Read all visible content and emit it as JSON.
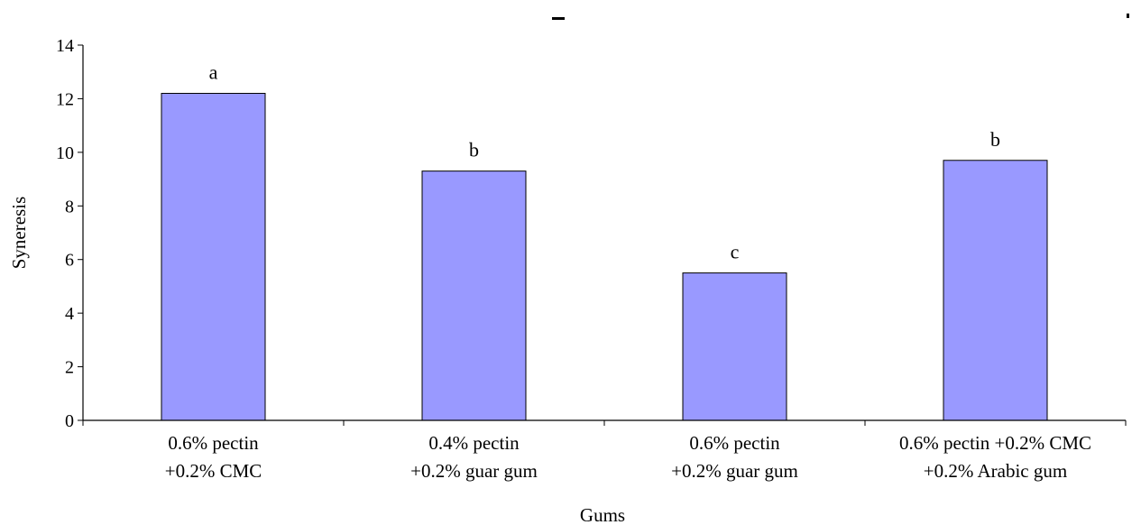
{
  "chart_data": {
    "type": "bar",
    "title": "",
    "xlabel": "Gums",
    "ylabel": "Syneresis",
    "ylim": [
      0,
      14
    ],
    "yticks": [
      0,
      2,
      4,
      6,
      8,
      10,
      12,
      14
    ],
    "grid": false,
    "categories": [
      [
        "0.6% pectin",
        "+0.2% CMC"
      ],
      [
        "0.4% pectin",
        "+0.2% guar gum"
      ],
      [
        "0.6% pectin",
        "+0.2% guar gum"
      ],
      [
        "0.6% pectin +0.2% CMC",
        "+0.2% Arabic gum"
      ]
    ],
    "values": [
      12.2,
      9.3,
      5.5,
      9.7
    ],
    "data_labels": [
      "a",
      "b",
      "c",
      "b"
    ],
    "colors": {
      "bar_fill": "#9999ff",
      "bar_stroke": "#000000",
      "axis": "#000000"
    }
  }
}
